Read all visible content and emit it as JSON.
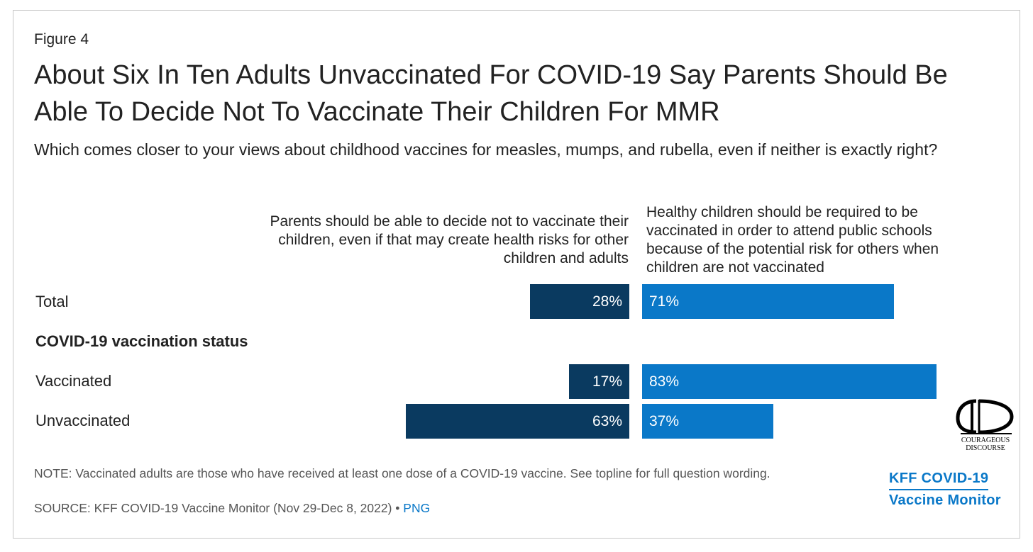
{
  "figure_label": "Figure 4",
  "title": "About Six In Ten Adults Unvaccinated For COVID-19 Say Parents Should Be Able To Decide Not To Vaccinate Their Children For MMR",
  "subtitle": "Which comes closer to your views about childhood vaccines for measles, mumps, and rubella, even if neither is exactly right?",
  "note": "NOTE: Vaccinated adults are those who have received at least one dose of a COVID-19 vaccine. See topline for full question wording.",
  "source_prefix": "SOURCE: KFF COVID-19 Vaccine Monitor (Nov 29-Dec 8, 2022) • ",
  "source_link": "PNG",
  "brand": {
    "line1": "KFF COVID-19",
    "line2": "Vaccine Monitor",
    "color": "#0a78c8"
  },
  "watermark": {
    "line1": "COURAGEOUS",
    "line2": "DISCOURSE"
  },
  "chart_data": {
    "type": "bar",
    "orientation": "horizontal-diverging",
    "title": "About Six In Ten Adults Unvaccinated For COVID-19 Say Parents Should Be Able To Decide Not To Vaccinate Their Children For MMR",
    "subtitle": "Which comes closer to your views about childhood vaccines for measles, mumps, and rubella, even if neither is exactly right?",
    "group_label": "COVID-19 vaccination status",
    "categories": [
      "Total",
      "Vaccinated",
      "Unvaccinated"
    ],
    "series": [
      {
        "name": "Parents should be able to decide not to vaccinate their children, even if that may create health risks for other children and adults",
        "values": [
          28,
          17,
          63
        ],
        "labels": [
          "28%",
          "17%",
          "63%"
        ],
        "color": "#0a3a60"
      },
      {
        "name": "Healthy children should be required to be vaccinated in order to attend public schools because of the potential risk for others when children are not vaccinated",
        "values": [
          71,
          83,
          37
        ],
        "labels": [
          "71%",
          "83%",
          "37%"
        ],
        "color": "#0a78c8"
      }
    ],
    "unit": "%",
    "legend": "column headers above bars"
  }
}
